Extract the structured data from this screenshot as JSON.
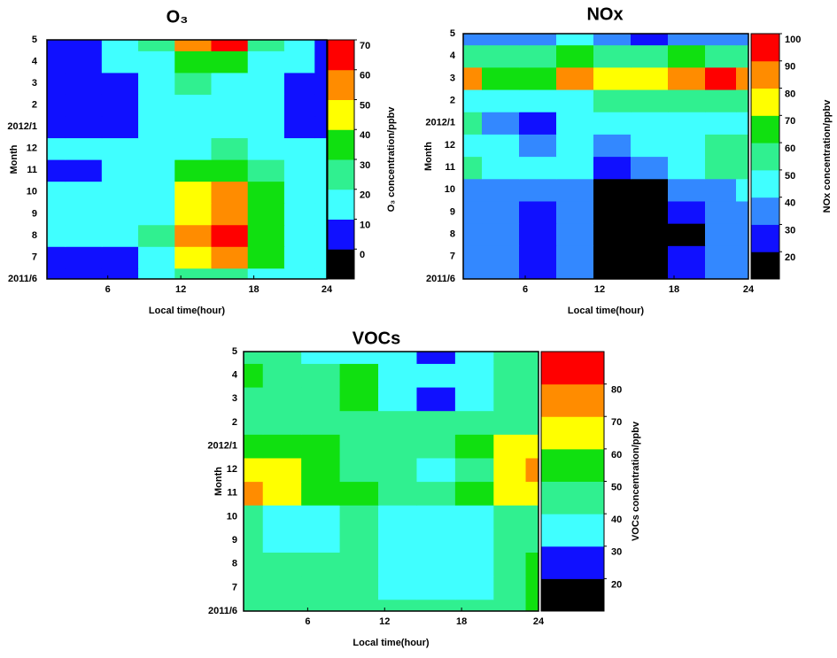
{
  "chart_data": [
    {
      "type": "contour",
      "title": "O₃",
      "x_label": "Local time(hour)",
      "y_label": "Month",
      "colorbar_label": "O₃ concentration/ppbv",
      "x": [
        1,
        4,
        7,
        10,
        13,
        16,
        19,
        22,
        24
      ],
      "y_categories": [
        "2011/6",
        "7",
        "8",
        "9",
        "10",
        "11",
        "12",
        "2012/1",
        "2",
        "3",
        "4",
        "5"
      ],
      "z": [
        [
          5,
          5,
          8,
          15,
          25,
          25,
          18,
          12,
          12
        ],
        [
          5,
          5,
          8,
          18,
          40,
          50,
          30,
          15,
          12
        ],
        [
          12,
          12,
          12,
          20,
          50,
          62,
          35,
          15,
          12
        ],
        [
          12,
          12,
          12,
          18,
          45,
          55,
          35,
          15,
          12
        ],
        [
          12,
          12,
          12,
          15,
          40,
          50,
          30,
          15,
          12
        ],
        [
          5,
          5,
          12,
          15,
          30,
          35,
          25,
          15,
          12
        ],
        [
          12,
          12,
          12,
          12,
          18,
          20,
          15,
          12,
          12
        ],
        [
          5,
          5,
          5,
          12,
          15,
          15,
          15,
          5,
          5
        ],
        [
          5,
          5,
          5,
          12,
          15,
          15,
          12,
          5,
          5
        ],
        [
          5,
          5,
          5,
          12,
          22,
          15,
          12,
          5,
          5
        ],
        [
          5,
          5,
          12,
          15,
          35,
          30,
          15,
          12,
          5
        ],
        [
          5,
          5,
          12,
          25,
          50,
          60,
          20,
          12,
          8
        ]
      ],
      "xlim": [
        1,
        24
      ],
      "xticks": [
        6,
        12,
        18,
        24
      ],
      "zlim": [
        -10,
        70
      ],
      "zticks": [
        0,
        10,
        20,
        30,
        40,
        50,
        60,
        70
      ],
      "colors": [
        "#000000",
        "#1010ff",
        "#40ffff",
        "#30f090",
        "#10e010",
        "#ffff00",
        "#ff8c00",
        "#ff0000"
      ]
    },
    {
      "type": "contour",
      "title": "NOx",
      "x_label": "Local time(hour)",
      "y_label": "Month",
      "colorbar_label": "NOx concentration/ppbv",
      "x": [
        1,
        4,
        7,
        10,
        13,
        16,
        19,
        22,
        24
      ],
      "y_categories": [
        "2011/6",
        "7",
        "8",
        "9",
        "10",
        "11",
        "12",
        "2012/1",
        "2",
        "3",
        "4",
        "5"
      ],
      "z": [
        [
          38,
          35,
          28,
          35,
          15,
          15,
          25,
          35,
          38
        ],
        [
          35,
          35,
          28,
          35,
          15,
          15,
          25,
          35,
          38
        ],
        [
          35,
          35,
          28,
          32,
          15,
          15,
          15,
          35,
          38
        ],
        [
          35,
          35,
          28,
          32,
          15,
          15,
          25,
          35,
          38
        ],
        [
          38,
          35,
          32,
          32,
          15,
          15,
          30,
          38,
          40
        ],
        [
          58,
          45,
          42,
          48,
          25,
          35,
          42,
          55,
          55
        ],
        [
          48,
          45,
          38,
          45,
          38,
          42,
          45,
          55,
          55
        ],
        [
          50,
          35,
          28,
          42,
          45,
          45,
          42,
          45,
          48
        ],
        [
          45,
          45,
          48,
          48,
          50,
          55,
          55,
          55,
          50
        ],
        [
          85,
          65,
          65,
          85,
          75,
          70,
          80,
          95,
          80
        ],
        [
          55,
          50,
          55,
          60,
          55,
          55,
          60,
          55,
          50
        ],
        [
          35,
          35,
          38,
          40,
          35,
          25,
          35,
          38,
          35
        ]
      ],
      "xlim": [
        1,
        24
      ],
      "xticks": [
        6,
        12,
        18,
        24
      ],
      "zlim": [
        10,
        100
      ],
      "zticks": [
        20,
        30,
        40,
        50,
        60,
        70,
        80,
        90,
        100
      ],
      "colors": [
        "#000000",
        "#1010ff",
        "#3388ff",
        "#40ffff",
        "#30f090",
        "#10e010",
        "#ffff00",
        "#ff8c00",
        "#ff0000"
      ]
    },
    {
      "type": "contour",
      "title": "VOCs",
      "x_label": "Local time(hour)",
      "y_label": "Month",
      "colorbar_label": "VOCs concentration/ppbv",
      "x": [
        1,
        4,
        7,
        10,
        13,
        16,
        19,
        22,
        24
      ],
      "y_categories": [
        "2011/6",
        "7",
        "8",
        "9",
        "10",
        "11",
        "12",
        "2012/1",
        "2",
        "3",
        "4",
        "5"
      ],
      "z": [
        [
          45,
          45,
          45,
          45,
          45,
          45,
          45,
          45,
          55
        ],
        [
          45,
          45,
          45,
          45,
          38,
          38,
          38,
          45,
          55
        ],
        [
          45,
          45,
          45,
          45,
          38,
          38,
          38,
          45,
          50
        ],
        [
          45,
          38,
          38,
          45,
          38,
          38,
          38,
          45,
          45
        ],
        [
          45,
          38,
          38,
          45,
          38,
          38,
          38,
          45,
          48
        ],
        [
          75,
          65,
          55,
          50,
          45,
          45,
          50,
          62,
          62
        ],
        [
          65,
          62,
          55,
          45,
          45,
          38,
          45,
          65,
          72
        ],
        [
          55,
          55,
          50,
          45,
          48,
          45,
          50,
          62,
          65
        ],
        [
          45,
          45,
          45,
          45,
          45,
          45,
          45,
          45,
          48
        ],
        [
          45,
          45,
          48,
          55,
          35,
          25,
          35,
          45,
          45
        ],
        [
          55,
          45,
          45,
          55,
          38,
          35,
          38,
          45,
          45
        ],
        [
          45,
          45,
          38,
          38,
          35,
          25,
          35,
          45,
          45
        ]
      ],
      "xlim": [
        1,
        24
      ],
      "xticks": [
        6,
        12,
        18,
        24
      ],
      "zlim": [
        10,
        90
      ],
      "zticks": [
        20,
        30,
        40,
        50,
        60,
        70,
        80
      ],
      "colors": [
        "#000000",
        "#1010ff",
        "#40ffff",
        "#30f090",
        "#10e010",
        "#ffff00",
        "#ff8c00",
        "#ff0000"
      ]
    }
  ]
}
